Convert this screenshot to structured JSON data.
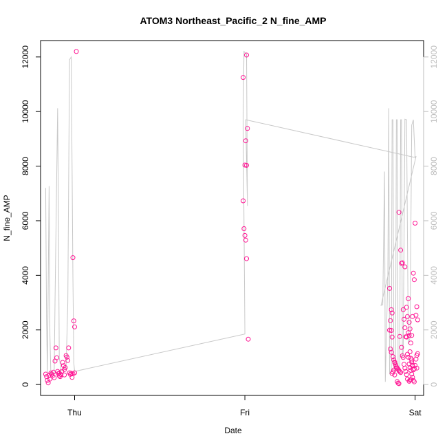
{
  "chart_data": {
    "type": "scatter",
    "title": "ATOM3 Northeast_Pacific_2 N_fine_AMP",
    "xlabel": "Date",
    "ylabel": "N_fine_AMP",
    "x_ticks": [
      "Thu",
      "Fri",
      "Sat"
    ],
    "x_range_days": [
      -1.2,
      1.05
    ],
    "y_left": {
      "ticks": [
        0,
        2000,
        4000,
        6000,
        8000,
        10000,
        12000
      ],
      "ylim": [
        -400,
        12600
      ]
    },
    "y_right": {
      "ticks": [
        0,
        2000,
        4000,
        6000,
        8000,
        10000,
        12000
      ],
      "ylim": [
        -400,
        12600
      ]
    },
    "grid": false,
    "legend": "none",
    "colors": {
      "points": "#ff1493",
      "line": "#c8c8c8",
      "right_axis": "#bdbdbd"
    },
    "series": [
      {
        "type": "scatter",
        "points": [
          [
            -1.17,
            380
          ],
          [
            -1.165,
            290
          ],
          [
            -1.16,
            150
          ],
          [
            -1.155,
            60
          ],
          [
            -1.15,
            330
          ],
          [
            -1.145,
            200
          ],
          [
            -1.14,
            420
          ],
          [
            -1.135,
            380
          ],
          [
            -1.13,
            310
          ],
          [
            -1.125,
            450
          ],
          [
            -1.12,
            250
          ],
          [
            -1.115,
            860
          ],
          [
            -1.11,
            1340
          ],
          [
            -1.105,
            980
          ],
          [
            -1.1,
            480
          ],
          [
            -1.095,
            400
          ],
          [
            -1.09,
            320
          ],
          [
            -1.085,
            290
          ],
          [
            -1.08,
            360
          ],
          [
            -1.075,
            480
          ],
          [
            -1.07,
            810
          ],
          [
            -1.065,
            690
          ],
          [
            -1.06,
            550
          ],
          [
            -1.055,
            620
          ],
          [
            -1.05,
            1060
          ],
          [
            -1.045,
            1000
          ],
          [
            -1.04,
            880
          ],
          [
            -1.035,
            1340
          ],
          [
            -1.03,
            430
          ],
          [
            -1.025,
            370
          ],
          [
            -1.02,
            410
          ],
          [
            -1.015,
            260
          ],
          [
            -1.01,
            4650
          ],
          [
            -1.005,
            2330
          ],
          [
            -1.0,
            2110
          ],
          [
            -0.99,
            12200
          ],
          [
            -1.0,
            430
          ],
          [
            -1.01,
            390
          ],
          [
            -1.06,
            350
          ],
          [
            -1.09,
            420
          ],
          [
            -0.01,
            11250
          ],
          [
            0.01,
            12070
          ],
          [
            0.015,
            9380
          ],
          [
            0.005,
            8930
          ],
          [
            0.0,
            8040
          ],
          [
            0.01,
            8030
          ],
          [
            -0.01,
            6730
          ],
          [
            -0.005,
            5710
          ],
          [
            0.0,
            5460
          ],
          [
            0.005,
            5290
          ],
          [
            0.01,
            4610
          ],
          [
            0.02,
            1660
          ],
          [
            0.85,
            3520
          ],
          [
            0.86,
            2740
          ],
          [
            0.865,
            2620
          ],
          [
            0.855,
            2340
          ],
          [
            0.85,
            1990
          ],
          [
            0.86,
            1980
          ],
          [
            0.865,
            1740
          ],
          [
            0.855,
            1300
          ],
          [
            0.86,
            1180
          ],
          [
            0.87,
            1020
          ],
          [
            0.875,
            900
          ],
          [
            0.88,
            800
          ],
          [
            0.885,
            720
          ],
          [
            0.89,
            650
          ],
          [
            0.895,
            600
          ],
          [
            0.9,
            560
          ],
          [
            0.905,
            510
          ],
          [
            0.91,
            470
          ],
          [
            0.915,
            440
          ],
          [
            0.875,
            530
          ],
          [
            0.87,
            460
          ],
          [
            0.865,
            400
          ],
          [
            0.88,
            350
          ],
          [
            0.89,
            610
          ],
          [
            0.905,
            6310
          ],
          [
            0.915,
            4920
          ],
          [
            0.92,
            4440
          ],
          [
            0.925,
            4460
          ],
          [
            0.93,
            2740
          ],
          [
            0.935,
            2390
          ],
          [
            0.94,
            2080
          ],
          [
            0.945,
            1750
          ],
          [
            0.95,
            1740
          ],
          [
            0.955,
            1110
          ],
          [
            0.96,
            1000
          ],
          [
            0.965,
            750
          ],
          [
            0.97,
            620
          ],
          [
            0.975,
            520
          ],
          [
            0.98,
            380
          ],
          [
            0.985,
            260
          ],
          [
            0.99,
            150
          ],
          [
            0.995,
            100
          ],
          [
            0.91,
            1760
          ],
          [
            0.92,
            1360
          ],
          [
            0.925,
            1050
          ],
          [
            0.93,
            990
          ],
          [
            0.935,
            740
          ],
          [
            0.94,
            600
          ],
          [
            0.945,
            480
          ],
          [
            0.95,
            360
          ],
          [
            0.955,
            200
          ],
          [
            0.94,
            4310
          ],
          [
            0.95,
            2830
          ],
          [
            0.955,
            2490
          ],
          [
            0.96,
            1900
          ],
          [
            0.965,
            1800
          ],
          [
            0.97,
            1200
          ],
          [
            0.975,
            960
          ],
          [
            0.98,
            820
          ],
          [
            0.985,
            680
          ],
          [
            0.99,
            540
          ],
          [
            0.96,
            3150
          ],
          [
            0.965,
            2280
          ],
          [
            0.97,
            2040
          ],
          [
            0.975,
            1520
          ],
          [
            0.98,
            900
          ],
          [
            0.985,
            700
          ],
          [
            0.99,
            4080
          ],
          [
            0.995,
            3840
          ],
          [
            1.0,
            5910
          ],
          [
            1.005,
            2540
          ],
          [
            1.01,
            2850
          ],
          [
            1.015,
            2370
          ],
          [
            1.01,
            1070
          ],
          [
            1.005,
            930
          ],
          [
            1.0,
            700
          ],
          [
            0.995,
            580
          ],
          [
            0.99,
            540
          ],
          [
            1.01,
            600
          ],
          [
            1.015,
            1130
          ],
          [
            0.985,
            2490
          ],
          [
            0.98,
            1800
          ],
          [
            0.97,
            160
          ],
          [
            0.975,
            180
          ],
          [
            0.965,
            120
          ],
          [
            0.9,
            50
          ],
          [
            0.905,
            30
          ],
          [
            0.895,
            110
          ],
          [
            0.88,
            820
          ]
        ]
      },
      {
        "type": "line",
        "points": [
          [
            -1.17,
            7200
          ],
          [
            -1.165,
            2400
          ],
          [
            -1.16,
            400
          ],
          [
            -1.15,
            7270
          ],
          [
            -1.145,
            1800
          ],
          [
            -1.14,
            400
          ],
          [
            -1.12,
            400
          ],
          [
            -1.115,
            3000
          ],
          [
            -1.1,
            10120
          ],
          [
            -1.095,
            6000
          ],
          [
            -1.09,
            1000
          ],
          [
            -1.08,
            500
          ],
          [
            -1.06,
            600
          ],
          [
            -1.05,
            600
          ],
          [
            -1.04,
            3000
          ],
          [
            -1.03,
            11900
          ],
          [
            -1.02,
            12000
          ],
          [
            -1.015,
            8000
          ],
          [
            -1.01,
            4000
          ],
          [
            -1.005,
            800
          ],
          [
            -1.0,
            480
          ],
          [
            0.0,
            1850
          ],
          [
            -0.01,
            9700
          ],
          [
            -0.005,
            12200
          ],
          [
            0.01,
            12100
          ],
          [
            0.015,
            6540
          ],
          [
            0.005,
            9700
          ],
          [
            0.99,
            8330
          ],
          [
            1.0,
            8340
          ],
          [
            1.005,
            8350
          ],
          [
            0.8,
            2900
          ],
          [
            0.81,
            2920
          ],
          [
            0.82,
            7800
          ],
          [
            0.825,
            100
          ],
          [
            0.84,
            4000
          ],
          [
            0.845,
            10120
          ],
          [
            0.85,
            400
          ],
          [
            0.86,
            500
          ],
          [
            0.865,
            9700
          ],
          [
            0.87,
            9700
          ],
          [
            0.875,
            600
          ],
          [
            0.885,
            500
          ],
          [
            0.89,
            9700
          ],
          [
            0.895,
            9700
          ],
          [
            0.9,
            600
          ],
          [
            0.91,
            700
          ],
          [
            0.915,
            9700
          ],
          [
            0.92,
            9700
          ],
          [
            0.925,
            1000
          ],
          [
            0.93,
            1200
          ],
          [
            0.94,
            9720
          ],
          [
            0.95,
            9700
          ],
          [
            0.96,
            1500
          ],
          [
            0.97,
            1700
          ],
          [
            0.98,
            9500
          ],
          [
            0.99,
            9700
          ],
          [
            1.0,
            8300
          ]
        ]
      }
    ]
  }
}
